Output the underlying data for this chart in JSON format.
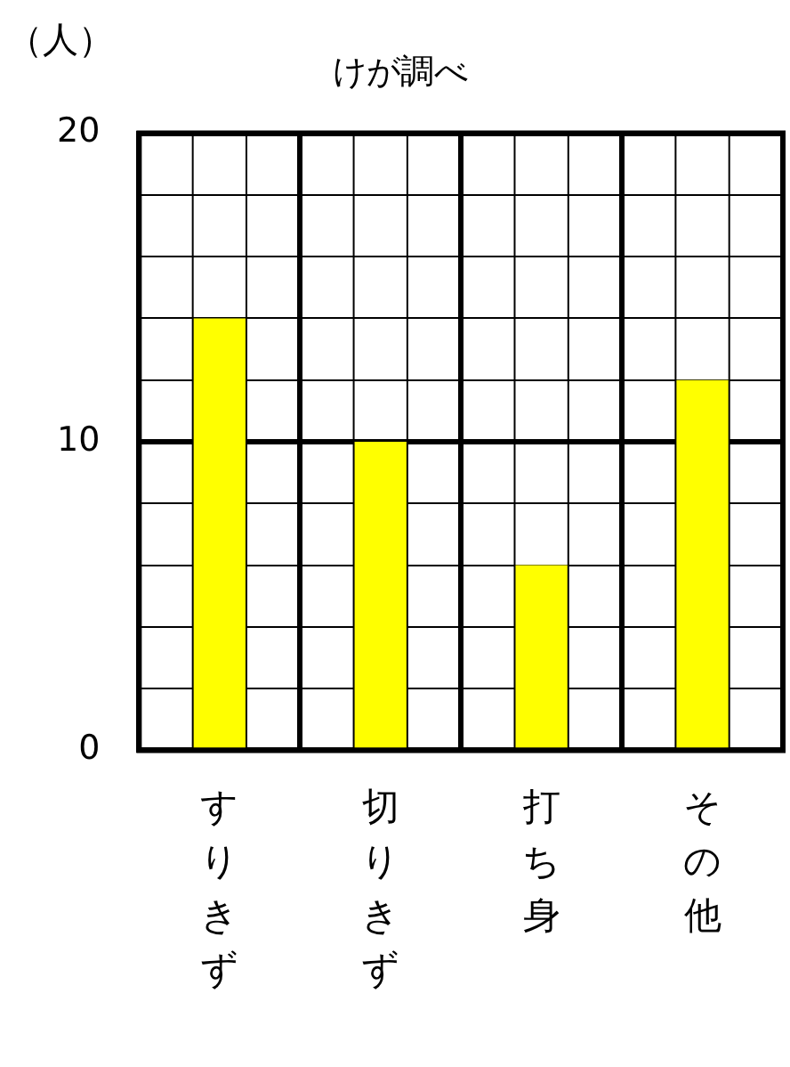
{
  "chart_data": {
    "type": "bar",
    "title": "けが調べ",
    "ylabel": "（人）",
    "categories": [
      "すりきず",
      "切りきず",
      "打ち身",
      "その他"
    ],
    "values": [
      14,
      10,
      6,
      12
    ],
    "color": "#ffff00",
    "ylim": [
      0,
      20
    ],
    "yticks": [
      0,
      {
        "value": 2,
        "label": null
      },
      {
        "value": 4,
        "label": null
      },
      {
        "value": 6,
        "label": null
      },
      {
        "value": 8,
        "label": null
      },
      10,
      {
        "value": 12,
        "label": null
      },
      {
        "value": 14,
        "label": null
      },
      {
        "value": 16,
        "label": null
      },
      {
        "value": 18,
        "label": null
      },
      20
    ],
    "grid": true,
    "legend": false
  }
}
